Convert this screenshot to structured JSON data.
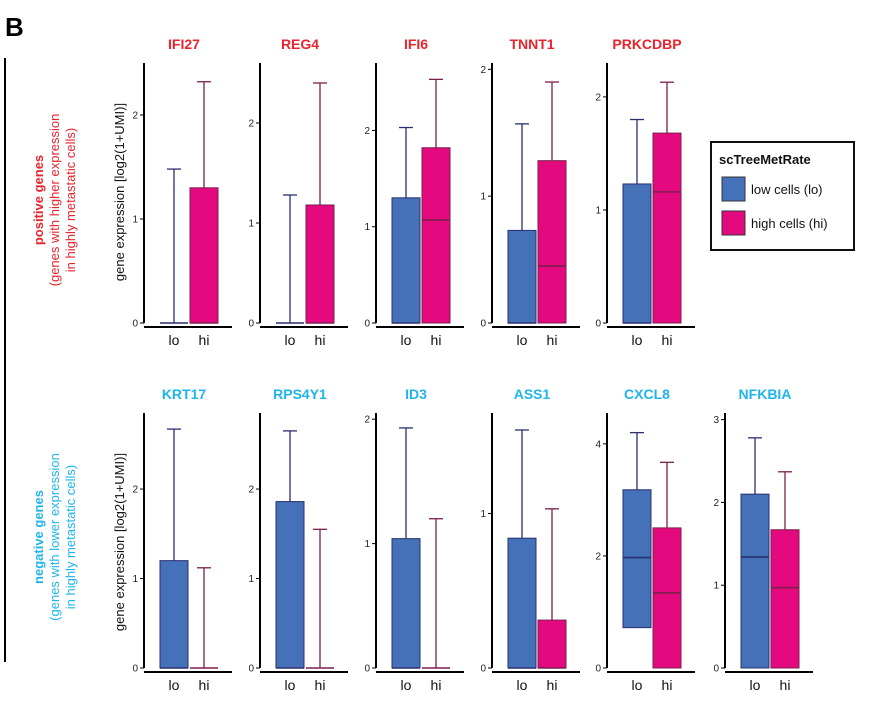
{
  "panel_letter": "B",
  "colors": {
    "positive": "#e8242c",
    "negative": "#1fb5ea",
    "lo_fill": "#4471b8",
    "lo_line": "#2a2f6e",
    "hi_fill": "#e4097f",
    "hi_line": "#7b1f4d"
  },
  "rows": {
    "positive": {
      "label_main": "positive genes",
      "label_sub1": "(genes with higher expression",
      "label_sub2": "in highly metastatic cells)"
    },
    "negative": {
      "label_main": "negative genes",
      "label_sub1": "(genes with lower expression",
      "label_sub2": "in highly metastatic cells)"
    }
  },
  "ylabel": "gene expression [log2(1+UMI)]",
  "legend": {
    "title": "scTreeMetRate",
    "items": [
      "low cells (lo)",
      "high cells (hi)"
    ]
  },
  "chart_data": [
    {
      "type": "box",
      "gene": "IFI27",
      "row": "positive",
      "categories": [
        "lo",
        "hi"
      ],
      "ylim": [
        0,
        2.5
      ],
      "yticks": [
        0,
        1,
        2
      ],
      "boxes": [
        {
          "min": 0,
          "q1": 0,
          "median": 0,
          "q3": 0,
          "max": 1.48
        },
        {
          "min": 0,
          "q1": 0,
          "median": 0,
          "q3": 1.3,
          "max": 2.32
        }
      ]
    },
    {
      "type": "box",
      "gene": "REG4",
      "row": "positive",
      "categories": [
        "lo",
        "hi"
      ],
      "ylim": [
        0,
        2.6
      ],
      "yticks": [
        0,
        1,
        2
      ],
      "boxes": [
        {
          "min": 0,
          "q1": 0,
          "median": 0,
          "q3": 0,
          "max": 1.28
        },
        {
          "min": 0,
          "q1": 0,
          "median": 0,
          "q3": 1.18,
          "max": 2.4
        }
      ]
    },
    {
      "type": "box",
      "gene": "IFI6",
      "row": "positive",
      "categories": [
        "lo",
        "hi"
      ],
      "ylim": [
        0,
        2.7
      ],
      "yticks": [
        0,
        1,
        2
      ],
      "boxes": [
        {
          "min": 0,
          "q1": 0,
          "median": 0,
          "q3": 1.3,
          "max": 2.03
        },
        {
          "min": 0,
          "q1": 0,
          "median": 1.07,
          "q3": 1.82,
          "max": 2.53
        }
      ]
    },
    {
      "type": "box",
      "gene": "TNNT1",
      "row": "positive",
      "categories": [
        "lo",
        "hi"
      ],
      "ylim": [
        0,
        2.05
      ],
      "yticks": [
        0,
        1,
        2
      ],
      "boxes": [
        {
          "min": 0,
          "q1": 0,
          "median": 0,
          "q3": 0.73,
          "max": 1.57
        },
        {
          "min": 0,
          "q1": 0,
          "median": 0.45,
          "q3": 1.28,
          "max": 1.9
        }
      ]
    },
    {
      "type": "box",
      "gene": "PRKCDBP",
      "row": "positive",
      "categories": [
        "lo",
        "hi"
      ],
      "ylim": [
        0,
        2.3
      ],
      "yticks": [
        0,
        1,
        2
      ],
      "boxes": [
        {
          "min": 0,
          "q1": 0,
          "median": 0,
          "q3": 1.23,
          "max": 1.8
        },
        {
          "min": 0,
          "q1": 0,
          "median": 1.16,
          "q3": 1.68,
          "max": 2.13
        }
      ]
    },
    {
      "type": "box",
      "gene": "KRT17",
      "row": "negative",
      "categories": [
        "lo",
        "hi"
      ],
      "ylim": [
        0,
        2.85
      ],
      "yticks": [
        0,
        1,
        2
      ],
      "boxes": [
        {
          "min": 0,
          "q1": 0,
          "median": 0,
          "q3": 1.2,
          "max": 2.67
        },
        {
          "min": 0,
          "q1": 0,
          "median": 0,
          "q3": 0,
          "max": 1.12
        }
      ]
    },
    {
      "type": "box",
      "gene": "RPS4Y1",
      "row": "negative",
      "categories": [
        "lo",
        "hi"
      ],
      "ylim": [
        0,
        2.85
      ],
      "yticks": [
        0,
        1,
        2
      ],
      "boxes": [
        {
          "min": 0,
          "q1": 0,
          "median": 0,
          "q3": 1.86,
          "max": 2.65
        },
        {
          "min": 0,
          "q1": 0,
          "median": 0,
          "q3": 0,
          "max": 1.55
        }
      ]
    },
    {
      "type": "box",
      "gene": "ID3",
      "row": "negative",
      "categories": [
        "lo",
        "hi"
      ],
      "ylim": [
        0,
        2.05
      ],
      "yticks": [
        0,
        1,
        2
      ],
      "boxes": [
        {
          "min": 0,
          "q1": 0,
          "median": 0,
          "q3": 1.04,
          "max": 1.93
        },
        {
          "min": 0,
          "q1": 0,
          "median": 0,
          "q3": 0,
          "max": 1.2
        }
      ]
    },
    {
      "type": "box",
      "gene": "ASS1",
      "row": "negative",
      "categories": [
        "lo",
        "hi"
      ],
      "ylim": [
        0,
        1.65
      ],
      "yticks": [
        0,
        1
      ],
      "boxes": [
        {
          "min": 0,
          "q1": 0,
          "median": 0,
          "q3": 0.84,
          "max": 1.54
        },
        {
          "min": 0,
          "q1": 0,
          "median": 0,
          "q3": 0.31,
          "max": 1.03
        }
      ]
    },
    {
      "type": "box",
      "gene": "CXCL8",
      "row": "negative",
      "categories": [
        "lo",
        "hi"
      ],
      "ylim": [
        0,
        4.55
      ],
      "yticks": [
        0,
        2,
        4
      ],
      "boxes": [
        {
          "min": 0,
          "q1": 0.72,
          "median": 1.97,
          "q3": 3.18,
          "max": 4.2
        },
        {
          "min": 0,
          "q1": 0,
          "median": 1.34,
          "q3": 2.5,
          "max": 3.67
        }
      ]
    },
    {
      "type": "box",
      "gene": "NFKBIA",
      "row": "negative",
      "categories": [
        "lo",
        "hi"
      ],
      "ylim": [
        0,
        3.08
      ],
      "yticks": [
        0,
        1,
        2,
        3
      ],
      "boxes": [
        {
          "min": 0,
          "q1": 0,
          "median": 1.34,
          "q3": 2.1,
          "max": 2.78
        },
        {
          "min": 0,
          "q1": 0,
          "median": 0.97,
          "q3": 1.67,
          "max": 2.37
        }
      ]
    }
  ]
}
